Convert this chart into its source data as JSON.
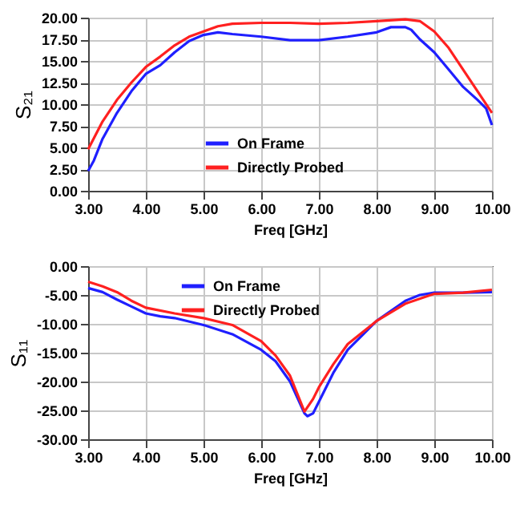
{
  "chart_data": [
    {
      "type": "line",
      "xlabel": "Freq [GHz]",
      "ylabel": "S₂₁",
      "legend": "bottom",
      "grid": true,
      "xlim": [
        3,
        10
      ],
      "ylim": [
        0,
        20
      ],
      "xticks": [
        {
          "value": 3,
          "label": "3.00"
        },
        {
          "value": 4,
          "label": "4.00"
        },
        {
          "value": 5,
          "label": "5.00"
        },
        {
          "value": 6,
          "label": "6.00"
        },
        {
          "value": 7,
          "label": "7.00"
        },
        {
          "value": 8,
          "label": "8.00"
        },
        {
          "value": 9,
          "label": "9.00"
        },
        {
          "value": 10,
          "label": "10.00"
        }
      ],
      "yticks": [
        {
          "value": 0,
          "label": "0.00"
        },
        {
          "value": 2.5,
          "label": "2.50"
        },
        {
          "value": 5,
          "label": "5.00"
        },
        {
          "value": 7.5,
          "label": "7.50"
        },
        {
          "value": 10,
          "label": "10.00"
        },
        {
          "value": 12.5,
          "label": "12.50"
        },
        {
          "value": 15,
          "label": "15.00"
        },
        {
          "value": 17.5,
          "label": "17.50"
        },
        {
          "value": 20,
          "label": "20.00"
        }
      ],
      "series": [
        {
          "name": "On Frame",
          "color": "#1f1fff",
          "x": [
            3.0,
            3.1,
            3.25,
            3.5,
            3.75,
            4.0,
            4.25,
            4.5,
            4.75,
            5.0,
            5.25,
            5.5,
            6.0,
            6.5,
            7.0,
            7.5,
            8.0,
            8.25,
            8.5,
            8.6,
            8.75,
            9.0,
            9.25,
            9.5,
            9.75,
            9.9,
            10.0
          ],
          "values": [
            2.3,
            3.5,
            6,
            9,
            11.5,
            13.5,
            14.5,
            16,
            17.3,
            18.0,
            18.3,
            18.1,
            17.8,
            17.4,
            17.4,
            17.8,
            18.3,
            18.9,
            18.9,
            18.6,
            17.5,
            16,
            14,
            12,
            10.5,
            9.5,
            7.6
          ]
        },
        {
          "name": "Directly Probed",
          "color": "#ff2020",
          "x": [
            3.0,
            3.25,
            3.5,
            3.75,
            4.0,
            4.25,
            4.5,
            4.75,
            5.0,
            5.25,
            5.5,
            6.0,
            6.5,
            7.0,
            7.5,
            8.0,
            8.5,
            8.75,
            9.0,
            9.25,
            9.5,
            9.75,
            10.0
          ],
          "values": [
            4.8,
            8,
            10.5,
            12.5,
            14.3,
            15.5,
            16.8,
            17.8,
            18.4,
            19.0,
            19.3,
            19.4,
            19.4,
            19.3,
            19.4,
            19.6,
            19.8,
            19.6,
            18.4,
            16.5,
            14,
            11.5,
            9.0
          ]
        }
      ]
    },
    {
      "type": "line",
      "xlabel": "Freq [GHz]",
      "ylabel": "S₁₁",
      "legend": "top",
      "grid": true,
      "xlim": [
        3,
        10
      ],
      "ylim": [
        -30,
        0
      ],
      "xticks": [
        {
          "value": 3,
          "label": "3.00"
        },
        {
          "value": 4,
          "label": "4.00"
        },
        {
          "value": 5,
          "label": "5.00"
        },
        {
          "value": 6,
          "label": "6.00"
        },
        {
          "value": 7,
          "label": "7.00"
        },
        {
          "value": 8,
          "label": "8.00"
        },
        {
          "value": 9,
          "label": "9.00"
        },
        {
          "value": 10,
          "label": "10.00"
        }
      ],
      "yticks": [
        {
          "value": -30,
          "label": "-30.00"
        },
        {
          "value": -25,
          "label": "-25.00"
        },
        {
          "value": -20,
          "label": "-20.00"
        },
        {
          "value": -15,
          "label": "-15.00"
        },
        {
          "value": -10,
          "label": "-10.00"
        },
        {
          "value": -5,
          "label": "-5.00"
        },
        {
          "value": 0,
          "label": "0.00"
        }
      ],
      "series": [
        {
          "name": "On Frame",
          "color": "#1f1fff",
          "x": [
            3.0,
            3.25,
            3.5,
            3.75,
            4.0,
            4.25,
            4.5,
            5.0,
            5.5,
            6.0,
            6.25,
            6.5,
            6.75,
            6.8,
            6.9,
            7.0,
            7.25,
            7.5,
            8.0,
            8.5,
            8.75,
            9.0,
            9.5,
            10.0
          ],
          "values": [
            -3.8,
            -4.5,
            -5.8,
            -7,
            -8.2,
            -8.7,
            -9,
            -10.2,
            -11.8,
            -14.5,
            -16.5,
            -20,
            -25.5,
            -26,
            -25.5,
            -23.5,
            -18.5,
            -14.5,
            -9.5,
            -6,
            -5,
            -4.6,
            -4.6,
            -4.5
          ]
        },
        {
          "name": "Directly Probed",
          "color": "#ff2020",
          "x": [
            3.0,
            3.25,
            3.5,
            3.75,
            4.0,
            4.5,
            5.0,
            5.5,
            6.0,
            6.25,
            6.5,
            6.75,
            6.9,
            7.0,
            7.25,
            7.5,
            8.0,
            8.5,
            9.0,
            9.5,
            10.0
          ],
          "values": [
            -2.7,
            -3.5,
            -4.5,
            -6,
            -7.2,
            -8.2,
            -9,
            -10.2,
            -13,
            -15.5,
            -19,
            -25.2,
            -23,
            -21,
            -17,
            -13.5,
            -9.5,
            -6.5,
            -4.8,
            -4.6,
            -4.1
          ]
        }
      ]
    }
  ]
}
